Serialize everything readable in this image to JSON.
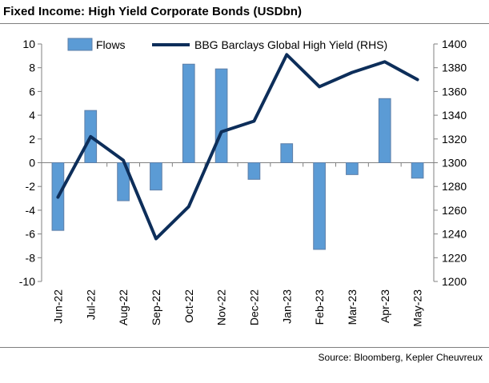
{
  "title": "Fixed Income: High Yield Corporate Bonds (USDbn)",
  "source": "Source: Bloomberg, Kepler Cheuvreux",
  "colors": {
    "bar": "#5b9bd5",
    "bar_edge": "#5e7fa8",
    "line": "#0d2e5a",
    "axis": "#808080"
  },
  "chart_data": {
    "type": "bar+line",
    "categories": [
      "Jun-22",
      "Jul-22",
      "Aug-22",
      "Sep-22",
      "Oct-22",
      "Nov-22",
      "Dec-22",
      "Jan-23",
      "Feb-23",
      "Mar-23",
      "Apr-23",
      "May-23"
    ],
    "series": [
      {
        "name": "Flows",
        "type": "bar",
        "axis": "left",
        "values": [
          -5.7,
          4.4,
          -3.2,
          -2.3,
          8.3,
          7.9,
          -1.4,
          1.6,
          -7.3,
          -1.0,
          5.4,
          -1.3
        ]
      },
      {
        "name": "BBG Barclays Global High Yield (RHS)",
        "type": "line",
        "axis": "right",
        "values": [
          1271,
          1322,
          1302,
          1236,
          1263,
          1326,
          1335,
          1391,
          1364,
          1376,
          1385,
          1370
        ]
      }
    ],
    "y_left": {
      "min": -10,
      "max": 10,
      "step": 2,
      "ticks": [
        "10",
        "8",
        "6",
        "4",
        "2",
        "0",
        "-2",
        "-4",
        "-6",
        "-8",
        "-10"
      ]
    },
    "y_right": {
      "min": 1200,
      "max": 1400,
      "step": 20,
      "ticks": [
        "1400",
        "1380",
        "1360",
        "1340",
        "1320",
        "1300",
        "1280",
        "1260",
        "1240",
        "1220",
        "1200"
      ]
    },
    "legend_position": "top"
  }
}
